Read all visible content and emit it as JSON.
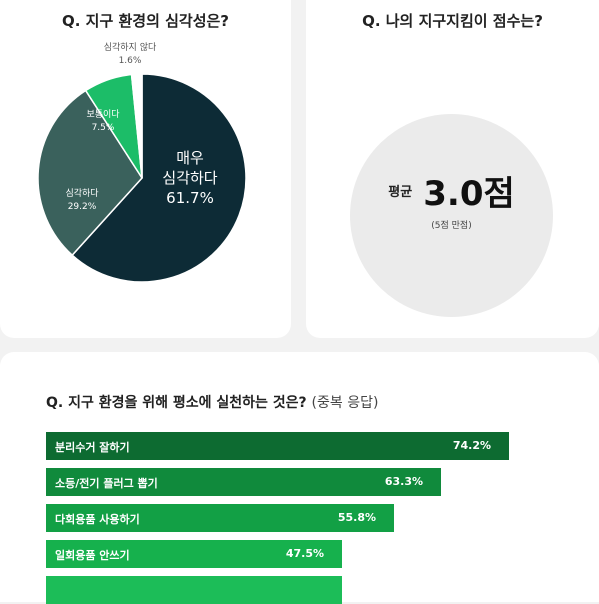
{
  "pie_card": {
    "title": "Q. 지구 환경의 심각성은?"
  },
  "score_card": {
    "title": "Q. 나의 지구지킴이 점수는?",
    "prefix": "평균",
    "value": "3.0점",
    "note": "(5점 만점)"
  },
  "bars_card": {
    "title": "Q. 지구 환경을 위해 평소에 실천하는 것은?",
    "subtitle": "(중복 응답)"
  },
  "colors": {
    "very_serious": "#0d2b36",
    "serious": "#3a615c",
    "normal": "#1cbd68",
    "not_serious": "#ffffff",
    "bars": [
      "#0d6b31",
      "#108a3c",
      "#12a045",
      "#16b14d",
      "#1cbd58"
    ]
  },
  "chart_data": [
    {
      "type": "pie",
      "title": "Q. 지구 환경의 심각성은?",
      "slices": [
        {
          "label_lines": [
            "매우",
            "심각하다"
          ],
          "value": 61.7,
          "value_text": "61.7%",
          "color": "#0d2b36"
        },
        {
          "label_lines": [
            "심각하다"
          ],
          "value": 29.2,
          "value_text": "29.2%",
          "color": "#3a615c"
        },
        {
          "label_lines": [
            "보통이다"
          ],
          "value": 7.5,
          "value_text": "7.5%",
          "color": "#1cbd68"
        },
        {
          "label_lines": [
            "심각하지 않다"
          ],
          "value": 1.6,
          "value_text": "1.6%",
          "color": "#ffffff"
        }
      ]
    },
    {
      "type": "bar",
      "orientation": "horizontal",
      "title": "Q. 지구 환경을 위해 평소에 실천하는 것은? (중복 응답)",
      "categories": [
        "분리수거 잘하기",
        "소등/전기 플러그 뽑기",
        "다회용품 사용하기",
        "일회용품 안쓰기",
        ""
      ],
      "values": [
        74.2,
        63.3,
        55.8,
        47.5,
        47.5
      ],
      "value_labels": [
        "74.2%",
        "63.3%",
        "55.8%",
        "47.5%",
        ""
      ],
      "xlim": [
        0,
        100
      ]
    }
  ]
}
